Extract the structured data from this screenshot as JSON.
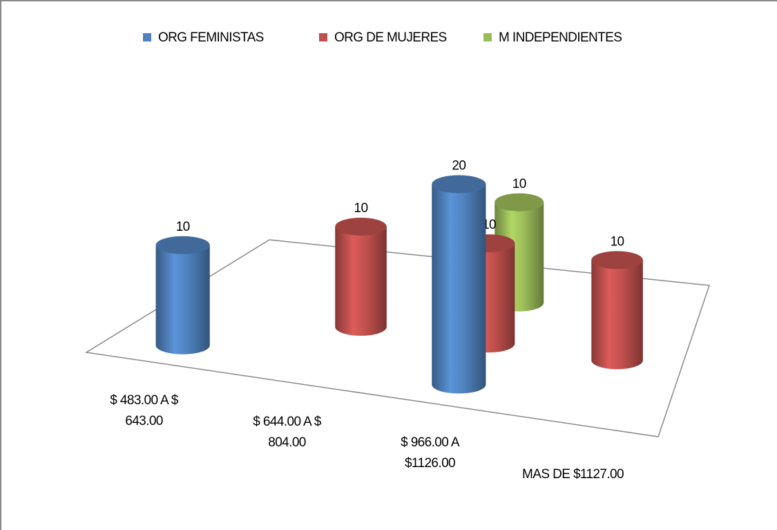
{
  "chart_data": {
    "type": "cylinder3d",
    "categories": [
      "$ 483.00 A $ 643.00",
      "$ 644.00 A $ 804.00",
      "$ 966.00 A $1126.00",
      "MAS DE $1127.00"
    ],
    "series": [
      {
        "name": "ORG FEMINISTAS",
        "color": "#4f81bd",
        "values": [
          10,
          null,
          20,
          null
        ]
      },
      {
        "name": "ORG DE MUJERES",
        "color": "#c0504d",
        "values": [
          null,
          10,
          10,
          10
        ]
      },
      {
        "name": "M INDEPENDIENTES",
        "color": "#9bbb59",
        "values": [
          null,
          null,
          10,
          null
        ]
      }
    ],
    "legend": "top"
  }
}
